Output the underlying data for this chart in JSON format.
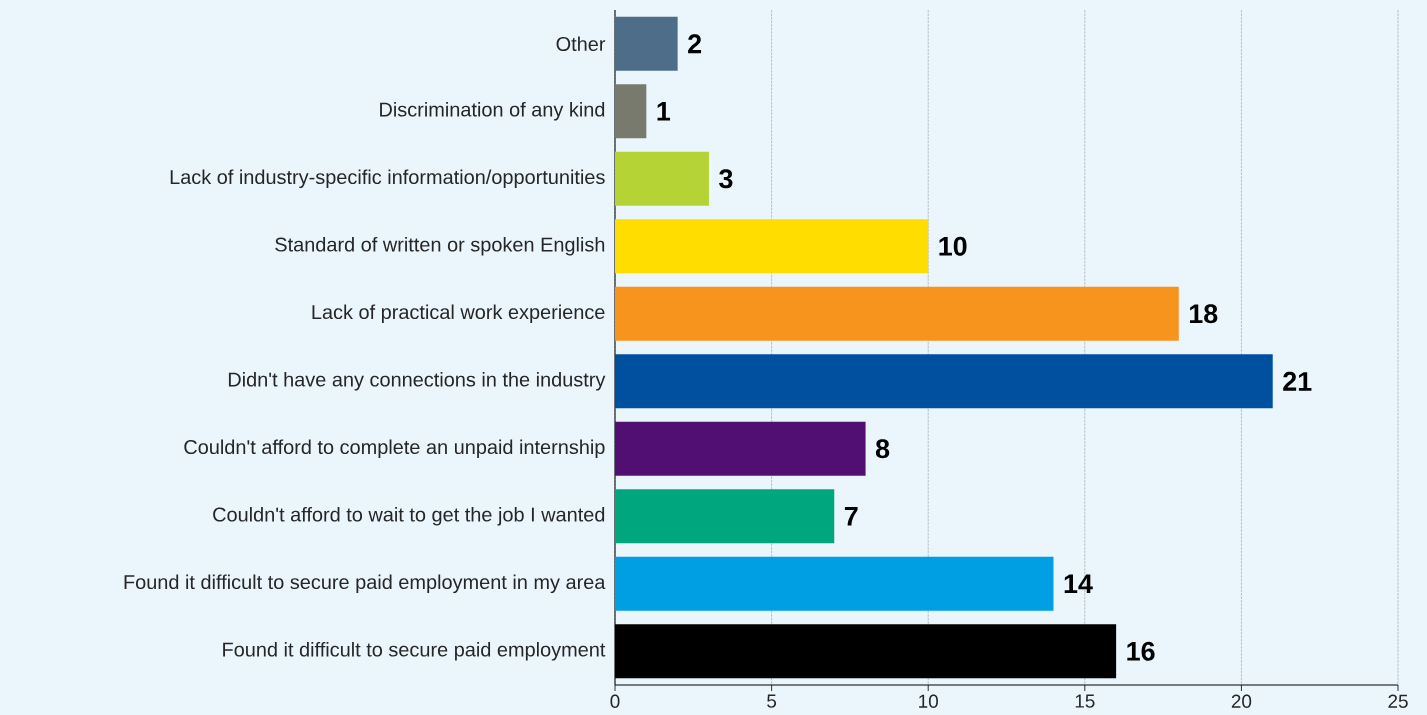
{
  "chart_data": {
    "type": "bar",
    "orientation": "horizontal",
    "categories": [
      "Other",
      "Discrimination of any kind",
      "Lack of industry-specific information/opportunities",
      "Standard of written or spoken English",
      "Lack of practical work experience",
      "Didn't have any connections in the industry",
      "Couldn't afford to complete an unpaid internship",
      "Couldn't afford to wait to get the job I wanted",
      "Found it difficult to secure paid employment in my area",
      "Found it difficult to secure paid employment"
    ],
    "values": [
      2,
      1,
      3,
      10,
      18,
      21,
      8,
      7,
      14,
      16
    ],
    "colors": [
      "#4d6d88",
      "#787a6e",
      "#b5d334",
      "#ffdd00",
      "#f7941d",
      "#0050a0",
      "#520f72",
      "#00a67e",
      "#009fe3",
      "#000000"
    ],
    "data_labels": true,
    "xlim": [
      0,
      25
    ],
    "xticks": [
      0,
      5,
      10,
      15,
      20,
      25
    ],
    "grid": "x"
  }
}
